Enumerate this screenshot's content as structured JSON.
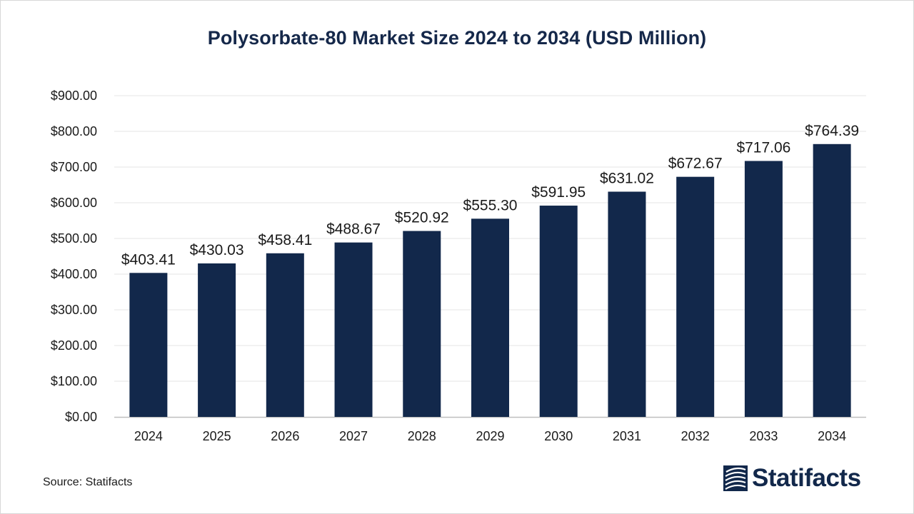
{
  "chart_data": {
    "type": "bar",
    "title": "Polysorbate-80 Market Size 2024 to 2034 (USD Million)",
    "categories": [
      "2024",
      "2025",
      "2026",
      "2027",
      "2028",
      "2029",
      "2030",
      "2031",
      "2032",
      "2033",
      "2034"
    ],
    "values": [
      403.41,
      430.03,
      458.41,
      488.67,
      520.92,
      555.3,
      591.95,
      631.02,
      672.67,
      717.06,
      764.39
    ],
    "data_labels": [
      "$403.41",
      "$430.03",
      "$458.41",
      "$488.67",
      "$520.92",
      "$555.30",
      "$591.95",
      "$631.02",
      "$672.67",
      "$717.06",
      "$764.39"
    ],
    "y_ticks": [
      0,
      100,
      200,
      300,
      400,
      500,
      600,
      700,
      800,
      900
    ],
    "y_tick_labels": [
      "$0.00",
      "$100.00",
      "$200.00",
      "$300.00",
      "$400.00",
      "$500.00",
      "$600.00",
      "$700.00",
      "$800.00",
      "$900.00"
    ],
    "ylim": [
      0,
      900
    ],
    "grid": true,
    "bar_color": "#12284b"
  },
  "footer": {
    "source": "Source: Statifacts",
    "brand": "Statifacts"
  }
}
